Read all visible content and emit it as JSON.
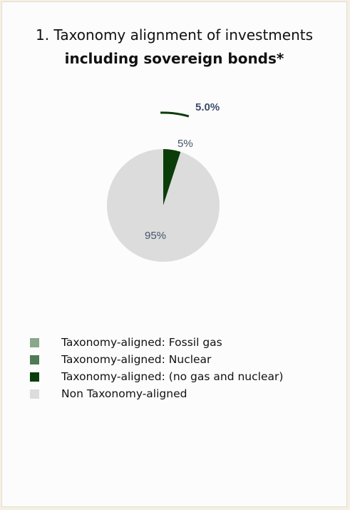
{
  "title_line1": "1. Taxonomy alignment of investments",
  "title_line2": "including sovereign bonds*",
  "chart_data": {
    "type": "pie",
    "slices": [
      {
        "name": "Taxonomy-aligned: (no gas and nuclear)",
        "value": 5,
        "label": "5%",
        "color": "#0b3d0b"
      },
      {
        "name": "Non Taxonomy-aligned",
        "value": 95,
        "label": "95%",
        "color": "#dcdcdc"
      }
    ],
    "callout": {
      "label": "5.0%",
      "color": "#0b3d0b"
    },
    "legend": [
      {
        "label": "Taxonomy-aligned: Fossil gas",
        "color": "#8aa88a"
      },
      {
        "label": "Taxonomy-aligned: Nuclear",
        "color": "#4f7a55"
      },
      {
        "label": "Taxonomy-aligned: (no gas and nuclear)",
        "color": "#0b3d0b"
      },
      {
        "label": "Non Taxonomy-aligned",
        "color": "#dcdcdc"
      }
    ]
  }
}
